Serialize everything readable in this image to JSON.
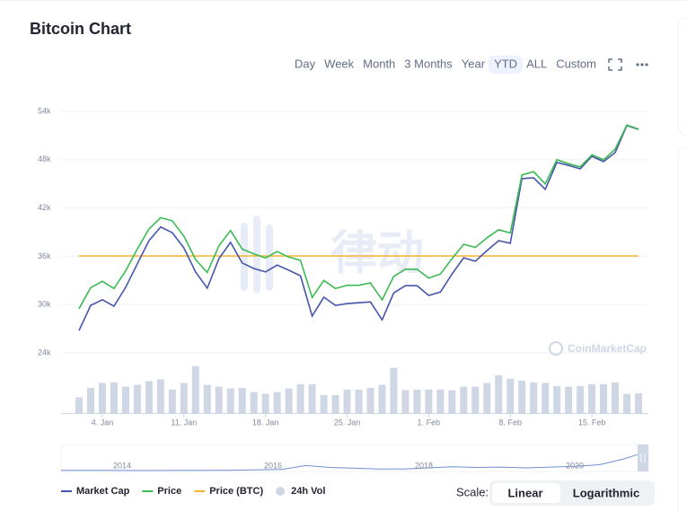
{
  "header": {
    "title": "Bitcoin Chart"
  },
  "toolbar": {
    "buttons": [
      "Day",
      "Week",
      "Month",
      "3 Months",
      "Year",
      "YTD",
      "ALL",
      "Custom"
    ],
    "selected": 5
  },
  "chart_data": {
    "type": "line",
    "categories": [
      null,
      null,
      "4. Jan",
      null,
      null,
      null,
      null,
      null,
      null,
      "11. Jan",
      null,
      null,
      null,
      null,
      null,
      null,
      "18. Jan",
      null,
      null,
      null,
      null,
      null,
      null,
      "25. Jan",
      null,
      null,
      null,
      null,
      null,
      null,
      "1. Feb",
      null,
      null,
      null,
      null,
      null,
      null,
      "8. Feb",
      null,
      null,
      null,
      null,
      null,
      null,
      "15. Feb",
      null,
      null,
      null,
      null
    ],
    "ylim": [
      22000,
      56000
    ],
    "yticks": [
      {
        "value": 24000,
        "label": "24k"
      },
      {
        "value": 30000,
        "label": "30k"
      },
      {
        "value": 36000,
        "label": "36k"
      },
      {
        "value": 42000,
        "label": "42k"
      },
      {
        "value": 48000,
        "label": "48k"
      },
      {
        "value": 54000,
        "label": "54k"
      }
    ],
    "y2lim": [
      400,
      1040
    ],
    "y3lim": [
      0,
      2.42
    ],
    "y4lim": [
      0,
      82
    ],
    "grid": true,
    "series": [
      {
        "name": "Market Cap",
        "color": "#4656ad",
        "axis": "y2",
        "values": [
          490,
          549,
          562,
          547,
          591,
          646,
          700,
          732,
          719,
          683,
          627,
          589,
          658,
          696,
          648,
          635,
          627,
          643,
          631,
          618,
          524,
          568,
          549,
          553,
          555,
          557,
          515,
          578,
          595,
          595,
          572,
          580,
          622,
          660,
          652,
          677,
          700,
          694,
          845,
          847,
          820,
          883,
          876,
          868,
          897,
          885,
          906,
          969,
          960
        ]
      },
      {
        "name": "Price",
        "color": "#3dbb52",
        "axis": "y",
        "values": [
          29500,
          32100,
          32900,
          32000,
          34200,
          36900,
          39400,
          40800,
          40400,
          38500,
          35600,
          34000,
          37300,
          39200,
          36900,
          36300,
          35800,
          36600,
          35900,
          35500,
          30900,
          33000,
          32000,
          32400,
          32400,
          32700,
          30600,
          33500,
          34400,
          34400,
          33300,
          33800,
          35700,
          37500,
          37100,
          38300,
          39300,
          38900,
          46100,
          46500,
          45000,
          48000,
          47500,
          47100,
          48600,
          48000,
          49300,
          52300,
          51800
        ]
      },
      {
        "name": "Price (BTC)",
        "color": "#f5b335",
        "axis": "y3",
        "values": [
          1,
          1,
          1,
          1,
          1,
          1,
          1,
          1,
          1,
          1,
          1,
          1,
          1,
          1,
          1,
          1,
          1,
          1,
          1,
          1,
          1,
          1,
          1,
          1,
          1,
          1,
          1,
          1,
          1,
          1,
          1,
          1,
          1,
          1,
          1,
          1,
          1,
          1,
          1,
          1,
          1,
          1,
          1,
          1,
          1,
          1,
          1,
          1,
          1
        ]
      },
      {
        "name": "24h Vol",
        "color": "#cfd6e4",
        "axis": "y4",
        "type": "bar",
        "values": [
          26,
          42,
          50,
          51,
          44,
          47,
          53,
          56,
          39,
          50,
          78,
          47,
          44,
          41,
          42,
          35,
          32,
          35,
          41,
          48,
          48,
          30,
          30,
          39,
          39,
          42,
          47,
          75,
          38,
          39,
          39,
          39,
          38,
          44,
          44,
          50,
          63,
          57,
          54,
          51,
          50,
          45,
          44,
          45,
          48,
          48,
          51,
          32,
          33
        ]
      }
    ],
    "watermarks": [
      "律动",
      "CoinMarketCap"
    ]
  },
  "navigator": {
    "labels": [
      "2014",
      "2016",
      "2018",
      "2020"
    ],
    "ylim": [
      0,
      60
    ],
    "values": [
      0.6,
      0.5,
      0.4,
      0.3,
      0.3,
      0.4,
      0.6,
      1,
      2,
      3,
      13,
      8,
      6,
      4,
      4,
      7,
      10,
      8,
      9,
      7,
      9,
      11,
      15,
      30,
      50
    ]
  },
  "scale": {
    "label": "Scale:",
    "options": [
      "Linear",
      "Logarithmic"
    ]
  }
}
